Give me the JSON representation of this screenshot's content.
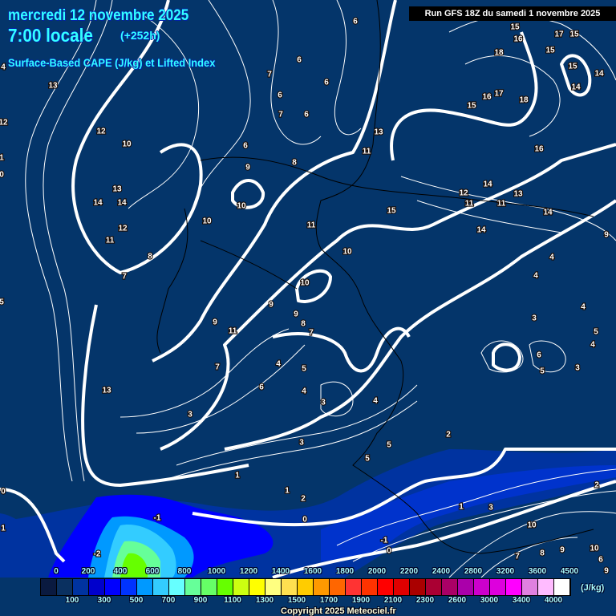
{
  "header": {
    "date": "mercredi 12 novembre 2025",
    "time": "7:00 locale",
    "lead": "(+252h)",
    "parameter": "Surface-Based CAPE (J/kg) et Lifted Index",
    "run": "Run GFS 18Z du samedi 1 novembre 2025"
  },
  "map": {
    "background_color": "#04356a",
    "contour_color": "#ffffff",
    "border_color": "#000000",
    "lifted_index_labels": [
      "6",
      "6",
      "7",
      "6",
      "6",
      "7",
      "6",
      "13",
      "12",
      "12",
      "10",
      "6",
      "9",
      "8",
      "11",
      "13",
      "13",
      "14",
      "14",
      "10",
      "10",
      "11",
      "15",
      "12",
      "11",
      "8",
      "7",
      "10",
      "10",
      "9",
      "9",
      "11",
      "9",
      "8",
      "7",
      "4",
      "7",
      "5",
      "6",
      "4",
      "4",
      "3",
      "13",
      "3",
      "3",
      "5",
      "5",
      "1",
      "1",
      "2",
      "0",
      "-1",
      "-2",
      "0",
      "-1",
      "0",
      "1",
      "4",
      "1",
      "0",
      "5",
      "15",
      "16",
      "17",
      "15",
      "15",
      "18",
      "15",
      "14",
      "14",
      "17",
      "16",
      "15",
      "18",
      "16",
      "12",
      "14",
      "13",
      "11",
      "11",
      "14",
      "14",
      "9",
      "4",
      "4",
      "4",
      "3",
      "5",
      "4",
      "6",
      "5",
      "3",
      "2",
      "2",
      "1",
      "3",
      "10",
      "8",
      "9",
      "10",
      "7",
      "9",
      "6"
    ]
  },
  "legend": {
    "unit": "(J/kg)",
    "top_labels": [
      "0",
      "200",
      "400",
      "600",
      "800",
      "1000",
      "1200",
      "1400",
      "1600",
      "1800",
      "2000",
      "2200",
      "2400",
      "2800",
      "3200",
      "3600",
      "4500"
    ],
    "bottom_labels": [
      "100",
      "300",
      "500",
      "700",
      "900",
      "1100",
      "1300",
      "1500",
      "1700",
      "1900",
      "2100",
      "2300",
      "2600",
      "3000",
      "3400",
      "4000"
    ],
    "colors": [
      "#0a1a40",
      "#0a3060",
      "#0033a0",
      "#0000cc",
      "#0000ff",
      "#0033ff",
      "#0099ff",
      "#33ccff",
      "#66ffff",
      "#66ff99",
      "#66ff66",
      "#66ff00",
      "#ccff11",
      "#ffff00",
      "#ffff80",
      "#ffe050",
      "#ffcc00",
      "#ff9900",
      "#ff6600",
      "#ff3333",
      "#ff3300",
      "#ff0000",
      "#e00000",
      "#aa0000",
      "#aa0033",
      "#aa0066",
      "#aa00aa",
      "#cc00cc",
      "#dd00dd",
      "#ff00ff",
      "#e080e0",
      "#ffbbff",
      "#ffffff"
    ]
  },
  "copyright": "Copyright 2025 Meteociel.fr"
}
